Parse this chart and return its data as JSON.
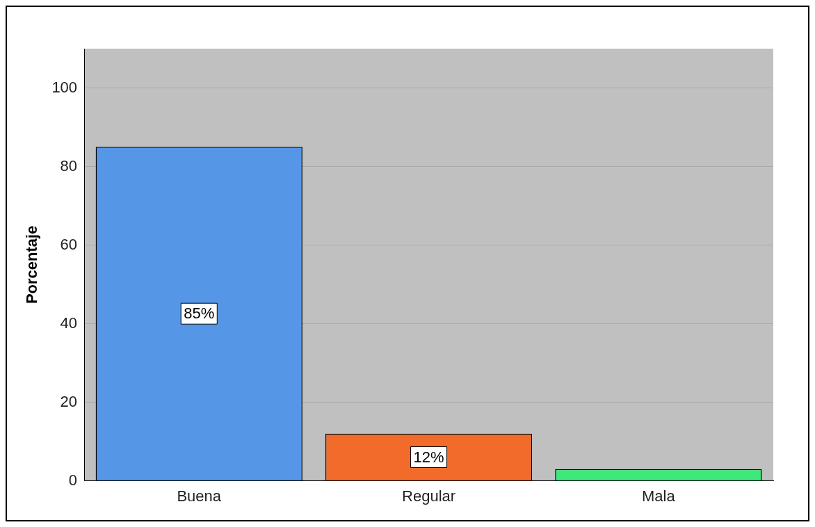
{
  "chart_data": {
    "type": "bar",
    "ylabel": "Porcentaje",
    "categories": [
      "Buena",
      "Regular",
      "Mala"
    ],
    "values": [
      85,
      12,
      3
    ],
    "colors": [
      "#5597e6",
      "#f26b2a",
      "#3ee87a"
    ],
    "value_labels": [
      "85%",
      "12%",
      null
    ],
    "ylim": [
      0,
      110
    ],
    "yticks": [
      0,
      20,
      40,
      60,
      80,
      100
    ],
    "grid": "y"
  }
}
